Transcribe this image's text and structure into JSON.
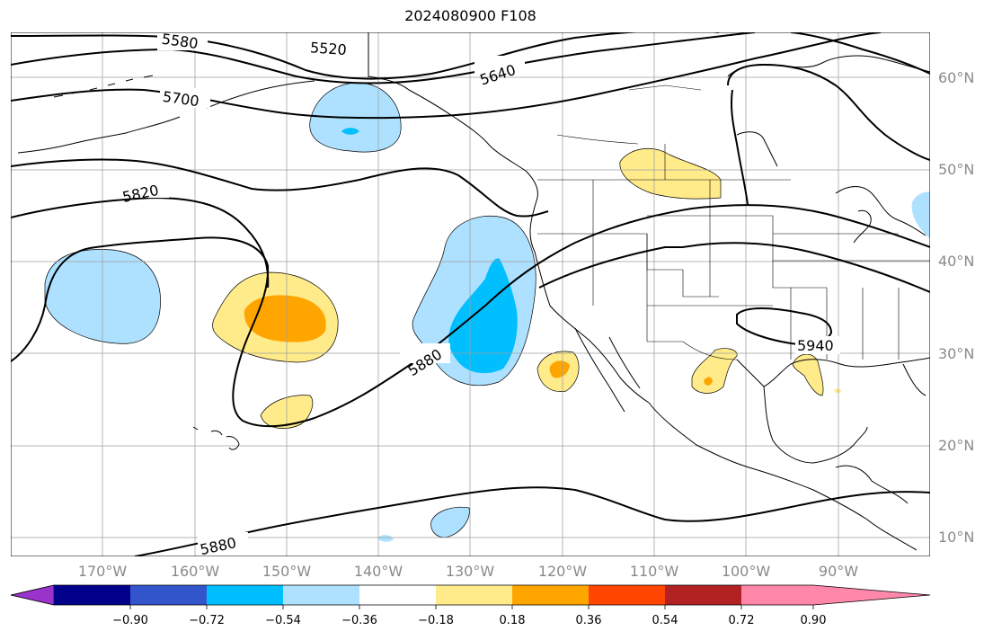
{
  "title": "2024080900 F108",
  "map": {
    "projection": "plate-carree",
    "lon_range": [
      -180,
      -80
    ],
    "lat_range": [
      8,
      65
    ],
    "coastlines": true,
    "state_borders": true,
    "gridlines": true
  },
  "lat_labels": [
    "60°N",
    "50°N",
    "40°N",
    "30°N",
    "20°N",
    "10°N"
  ],
  "lon_labels": [
    "170°W",
    "160°W",
    "150°W",
    "140°W",
    "130°W",
    "120°W",
    "110°W",
    "100°W",
    "90°W"
  ],
  "contours": {
    "field": "geopotential height",
    "color": "#000000",
    "labels": [
      "5580",
      "5520",
      "5640",
      "5700",
      "5820",
      "5880",
      "5940",
      "5880"
    ]
  },
  "shading": {
    "colors": [
      "#9933cc",
      "#00008b",
      "#3355cc",
      "#00bfff",
      "#aee1ff",
      "#ffffff",
      "#ffeb8a",
      "#ffa500",
      "#ff4500",
      "#b22222",
      "#ff88aa"
    ]
  },
  "colorbar": {
    "ticks": [
      "−0.90",
      "−0.72",
      "−0.54",
      "−0.36",
      "−0.18",
      "0.18",
      "0.36",
      "0.54",
      "0.72",
      "0.90"
    ],
    "colors": [
      "#9933cc",
      "#00008b",
      "#3355cc",
      "#00bfff",
      "#aee1ff",
      "#ffffff",
      "#ffeb8a",
      "#ffa500",
      "#ff4500",
      "#b22222",
      "#ff88aa"
    ]
  }
}
